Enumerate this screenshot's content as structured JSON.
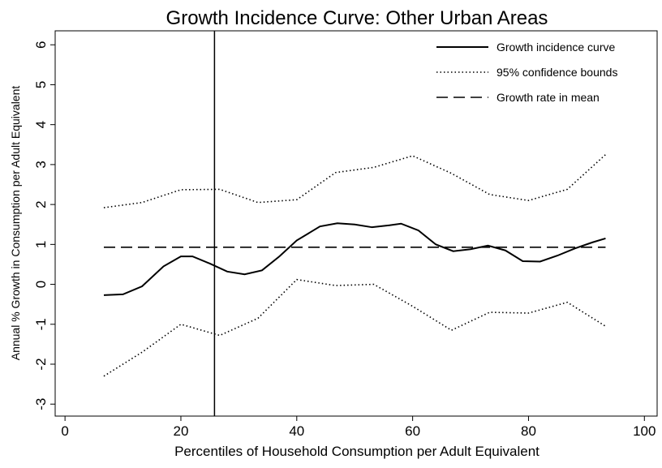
{
  "chart_data": {
    "type": "line",
    "title": "Growth Incidence Curve: Other Urban Areas",
    "x_label": "Percentiles of Household Consumption per Adult Equivalent",
    "y_label": "Annual % Growth in Consumption per Adult Equivalent",
    "xlim": [
      -1.7,
      102.2
    ],
    "xticks": [
      0,
      20,
      40,
      60,
      80,
      100
    ],
    "ylim": [
      -3.3,
      6.35
    ],
    "yticks": [
      -3,
      -2,
      -1,
      0,
      1,
      2,
      3,
      4,
      5,
      6
    ],
    "vline": 25.8,
    "legend": "top-right",
    "series": [
      {
        "name": "Growth incidence curve",
        "color": "#000000",
        "style": "solid",
        "x": [
          6.7,
          10,
          13.3,
          17,
          20,
          22,
          25,
          28,
          31,
          34,
          37,
          40,
          44,
          47,
          50,
          53,
          56,
          58,
          61,
          64,
          67,
          70,
          73,
          76,
          79,
          82,
          85,
          88,
          91,
          93.3
        ],
        "values": [
          -0.27,
          -0.25,
          -0.05,
          0.45,
          0.7,
          0.7,
          0.52,
          0.32,
          0.25,
          0.35,
          0.7,
          1.1,
          1.45,
          1.53,
          1.5,
          1.43,
          1.48,
          1.52,
          1.35,
          1.0,
          0.83,
          0.88,
          0.97,
          0.85,
          0.58,
          0.57,
          0.72,
          0.9,
          1.05,
          1.15
        ]
      },
      {
        "name": "95% confidence bounds",
        "color": "#000000",
        "style": "dotted",
        "x": [
          6.7,
          13.3,
          20,
          26.7,
          33.3,
          40,
          46.7,
          53.3,
          60,
          66.7,
          73.3,
          80,
          86.7,
          93.3
        ],
        "values": [
          1.92,
          2.05,
          2.37,
          2.38,
          2.05,
          2.12,
          2.8,
          2.93,
          3.22,
          2.78,
          2.25,
          2.1,
          2.38,
          3.25
        ],
        "lower": [
          -2.3,
          -1.7,
          -1.0,
          -1.28,
          -0.85,
          0.12,
          -0.03,
          0.0,
          -0.55,
          -1.15,
          -0.7,
          -0.72,
          -0.45,
          -1.05
        ]
      },
      {
        "name": "Growth rate in mean",
        "color": "#000000",
        "style": "dashed",
        "x": [
          6.7,
          93.3
        ],
        "values": [
          0.93,
          0.93
        ]
      }
    ]
  }
}
